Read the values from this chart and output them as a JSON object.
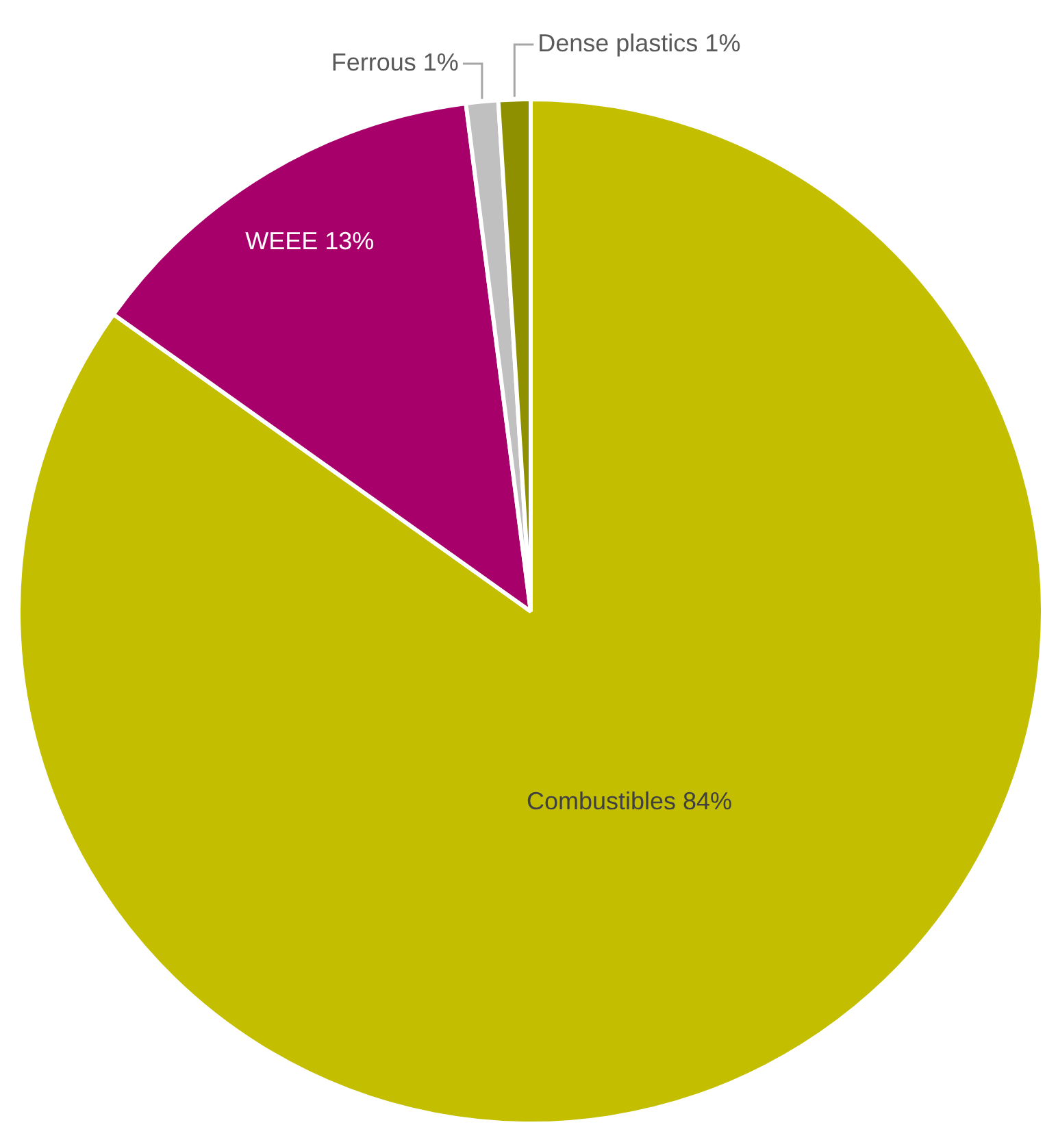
{
  "chart_data": {
    "type": "pie",
    "categories": [
      "Combustibles",
      "WEEE",
      "Ferrous",
      "Dense plastics"
    ],
    "values": [
      84,
      13,
      1,
      1
    ],
    "value_labels": [
      "84%",
      "13%",
      "1%",
      "1%"
    ],
    "colors": [
      "#c3be00",
      "#a8006b",
      "#c0c0c0",
      "#8f9000"
    ],
    "legend": false
  }
}
